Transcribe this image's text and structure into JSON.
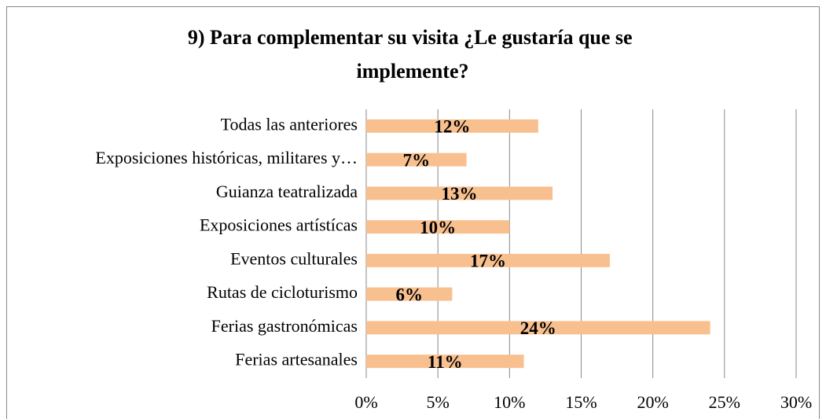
{
  "chart_data": {
    "type": "barh",
    "title": "9) Para complementar su visita ¿Le gustaría que se implemente?",
    "categories": [
      "Todas las anteriores",
      "Exposiciones históricas, militares y…",
      "Guianza teatralizada",
      "Exposiciones artístícas",
      "Eventos culturales",
      "Rutas de cicloturismo",
      "Ferias gastronómicas",
      "Ferias artesanales"
    ],
    "values": [
      12,
      7,
      13,
      10,
      17,
      6,
      24,
      11
    ],
    "value_labels": [
      "12%",
      "7%",
      "13%",
      "10%",
      "17%",
      "6%",
      "24%",
      "11%"
    ],
    "color": "#f9c08f",
    "xlim": [
      0,
      30
    ],
    "xticks": [
      {
        "value": 0,
        "label": "0%"
      },
      {
        "value": 5,
        "label": "5%"
      },
      {
        "value": 10,
        "label": "10%"
      },
      {
        "value": 15,
        "label": "15%"
      },
      {
        "value": 20,
        "label": "20%"
      },
      {
        "value": 25,
        "label": "25%"
      },
      {
        "value": 30,
        "label": "30%"
      }
    ],
    "grid": true
  }
}
